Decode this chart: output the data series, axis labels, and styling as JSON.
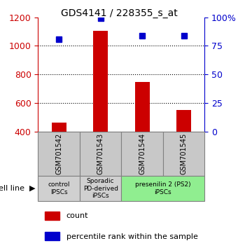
{
  "title": "GDS4141 / 228355_s_at",
  "samples": [
    "GSM701542",
    "GSM701543",
    "GSM701544",
    "GSM701545"
  ],
  "counts": [
    460,
    1105,
    745,
    550
  ],
  "percentile_ranks": [
    81,
    99,
    84,
    84
  ],
  "ylim_left": [
    400,
    1200
  ],
  "ylim_right": [
    0,
    100
  ],
  "yticks_left": [
    400,
    600,
    800,
    1000,
    1200
  ],
  "yticks_right": [
    0,
    25,
    50,
    75,
    100
  ],
  "bar_color": "#cc0000",
  "dot_color": "#0000cc",
  "bar_width": 0.35,
  "cell_line_labels": [
    "control\nIPSCs",
    "Sporadic\nPD-derived\niPSCs",
    "presenilin 2 (PS2)\niPSCs"
  ],
  "cell_line_spans": [
    [
      0,
      1
    ],
    [
      1,
      2
    ],
    [
      2,
      4
    ]
  ],
  "cell_line_colors": [
    "#d0d0d0",
    "#d0d0d0",
    "#90ee90"
  ],
  "sample_box_color": "#c8c8c8",
  "title_fontsize": 10
}
